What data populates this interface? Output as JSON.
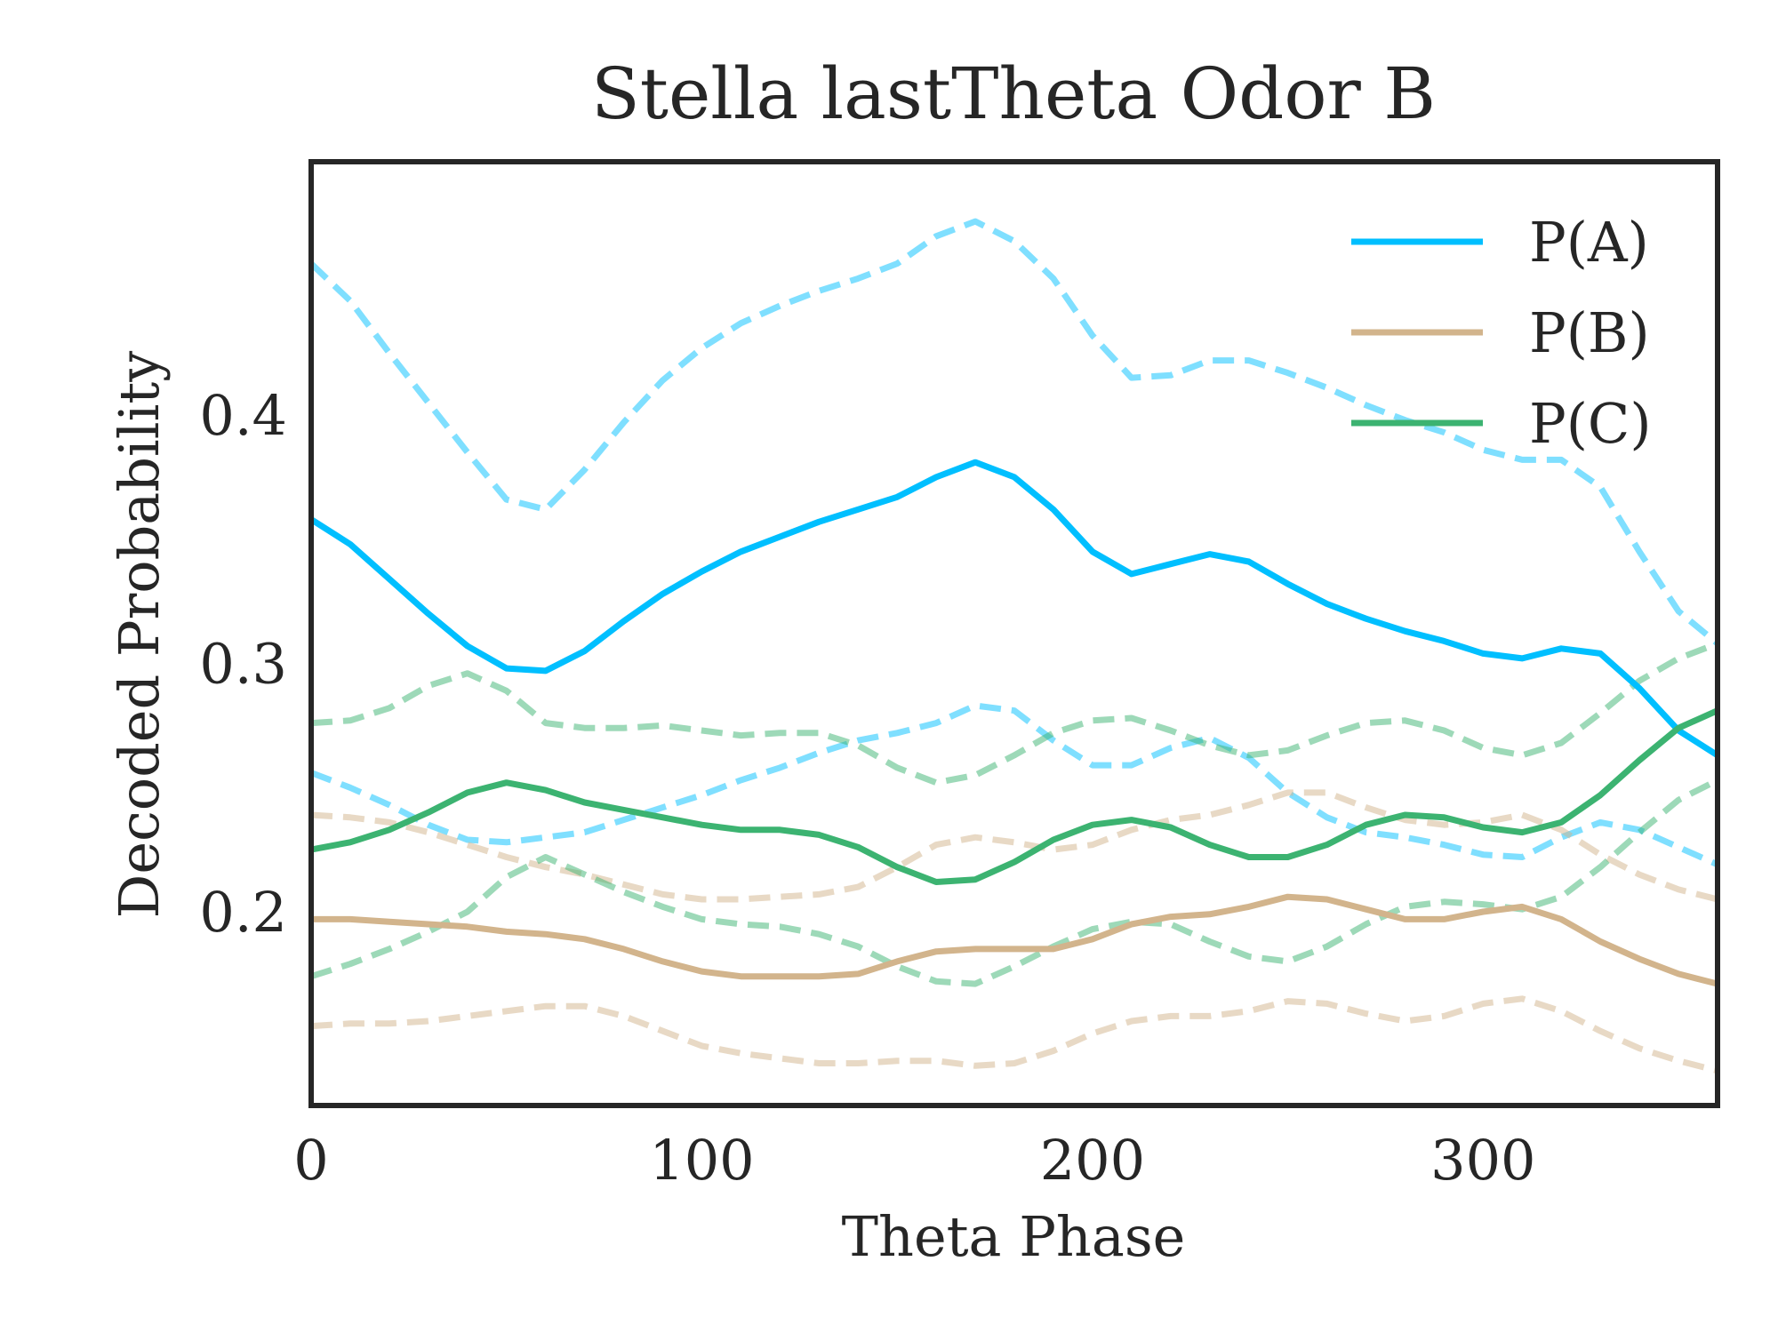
{
  "chart_data": {
    "type": "line",
    "title": "Stella lastTheta Odor B",
    "xlabel": "Theta Phase",
    "ylabel": "Decoded Probability",
    "xlim": [
      0,
      360
    ],
    "ylim": [
      0.122,
      0.502
    ],
    "xticks": [
      0,
      100,
      200,
      300
    ],
    "yticks": [
      0.2,
      0.3,
      0.4
    ],
    "xtick_labels": [
      "0",
      "100",
      "200",
      "300"
    ],
    "ytick_labels": [
      "0.2",
      "0.3",
      "0.4"
    ],
    "grid": false,
    "legend": {
      "position": "top-right"
    },
    "x": [
      0,
      10,
      20,
      30,
      40,
      50,
      60,
      70,
      80,
      90,
      100,
      110,
      120,
      130,
      140,
      150,
      160,
      170,
      180,
      190,
      200,
      210,
      220,
      230,
      240,
      250,
      260,
      270,
      280,
      290,
      300,
      310,
      320,
      330,
      340,
      350,
      360
    ],
    "series": [
      {
        "name": "P(A)",
        "color": "#00bfff",
        "mean": [
          0.358,
          0.348,
          0.334,
          0.32,
          0.307,
          0.298,
          0.297,
          0.305,
          0.317,
          0.328,
          0.337,
          0.345,
          0.351,
          0.357,
          0.362,
          0.367,
          0.375,
          0.381,
          0.375,
          0.362,
          0.345,
          0.336,
          0.34,
          0.344,
          0.341,
          0.332,
          0.324,
          0.318,
          0.313,
          0.309,
          0.304,
          0.302,
          0.306,
          0.304,
          0.29,
          0.273,
          0.263
        ],
        "upper": [
          0.461,
          0.446,
          0.425,
          0.405,
          0.385,
          0.366,
          0.362,
          0.378,
          0.397,
          0.414,
          0.427,
          0.437,
          0.444,
          0.45,
          0.455,
          0.461,
          0.472,
          0.478,
          0.47,
          0.455,
          0.432,
          0.415,
          0.416,
          0.422,
          0.422,
          0.417,
          0.411,
          0.404,
          0.398,
          0.393,
          0.386,
          0.382,
          0.382,
          0.371,
          0.345,
          0.321,
          0.308
        ],
        "lower": [
          0.256,
          0.25,
          0.243,
          0.235,
          0.229,
          0.228,
          0.23,
          0.232,
          0.237,
          0.242,
          0.247,
          0.253,
          0.258,
          0.264,
          0.269,
          0.272,
          0.276,
          0.283,
          0.281,
          0.269,
          0.259,
          0.259,
          0.266,
          0.27,
          0.262,
          0.248,
          0.238,
          0.232,
          0.23,
          0.227,
          0.223,
          0.222,
          0.23,
          0.236,
          0.233,
          0.226,
          0.219
        ]
      },
      {
        "name": "P(B)",
        "color": "#d2b48c",
        "mean": [
          0.197,
          0.197,
          0.196,
          0.195,
          0.194,
          0.192,
          0.191,
          0.189,
          0.185,
          0.18,
          0.176,
          0.174,
          0.174,
          0.174,
          0.175,
          0.18,
          0.184,
          0.185,
          0.185,
          0.185,
          0.189,
          0.195,
          0.198,
          0.199,
          0.202,
          0.206,
          0.205,
          0.201,
          0.197,
          0.197,
          0.2,
          0.202,
          0.197,
          0.188,
          0.181,
          0.175,
          0.171
        ],
        "upper": [
          0.239,
          0.238,
          0.236,
          0.232,
          0.227,
          0.222,
          0.218,
          0.215,
          0.211,
          0.207,
          0.205,
          0.205,
          0.206,
          0.207,
          0.21,
          0.218,
          0.227,
          0.23,
          0.228,
          0.225,
          0.227,
          0.233,
          0.237,
          0.239,
          0.243,
          0.248,
          0.248,
          0.242,
          0.237,
          0.235,
          0.236,
          0.239,
          0.233,
          0.223,
          0.215,
          0.209,
          0.205
        ],
        "lower": [
          0.154,
          0.155,
          0.155,
          0.156,
          0.158,
          0.16,
          0.162,
          0.162,
          0.158,
          0.152,
          0.146,
          0.143,
          0.141,
          0.139,
          0.139,
          0.14,
          0.14,
          0.138,
          0.139,
          0.144,
          0.151,
          0.156,
          0.158,
          0.158,
          0.16,
          0.164,
          0.163,
          0.159,
          0.156,
          0.158,
          0.163,
          0.165,
          0.16,
          0.152,
          0.145,
          0.14,
          0.136
        ]
      },
      {
        "name": "P(C)",
        "color": "#3cb371",
        "mean": [
          0.225,
          0.228,
          0.233,
          0.24,
          0.248,
          0.252,
          0.249,
          0.244,
          0.241,
          0.238,
          0.235,
          0.233,
          0.233,
          0.231,
          0.226,
          0.218,
          0.212,
          0.213,
          0.22,
          0.229,
          0.235,
          0.237,
          0.234,
          0.227,
          0.222,
          0.222,
          0.227,
          0.235,
          0.239,
          0.238,
          0.234,
          0.232,
          0.236,
          0.247,
          0.261,
          0.274,
          0.281
        ],
        "upper": [
          0.276,
          0.277,
          0.282,
          0.291,
          0.296,
          0.289,
          0.276,
          0.274,
          0.274,
          0.275,
          0.273,
          0.271,
          0.272,
          0.272,
          0.267,
          0.258,
          0.252,
          0.255,
          0.263,
          0.272,
          0.277,
          0.278,
          0.273,
          0.267,
          0.263,
          0.265,
          0.271,
          0.276,
          0.277,
          0.273,
          0.266,
          0.263,
          0.268,
          0.28,
          0.293,
          0.302,
          0.308
        ],
        "lower": [
          0.174,
          0.179,
          0.185,
          0.192,
          0.2,
          0.214,
          0.222,
          0.215,
          0.208,
          0.202,
          0.197,
          0.195,
          0.194,
          0.191,
          0.186,
          0.178,
          0.172,
          0.171,
          0.178,
          0.186,
          0.193,
          0.196,
          0.195,
          0.188,
          0.182,
          0.18,
          0.186,
          0.195,
          0.202,
          0.204,
          0.203,
          0.201,
          0.206,
          0.218,
          0.232,
          0.245,
          0.253
        ]
      }
    ]
  }
}
